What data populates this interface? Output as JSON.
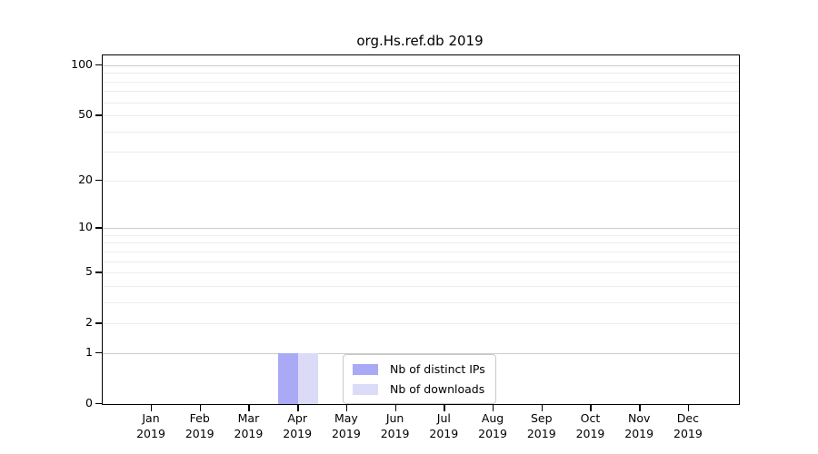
{
  "chart_data": {
    "type": "bar",
    "title": "org.Hs.ref.db 2019",
    "yscale": "log10(1+x)",
    "ylim": [
      0,
      115
    ],
    "grid": "horizontal",
    "categories": [
      "Jan",
      "Feb",
      "Mar",
      "Apr",
      "May",
      "Jun",
      "Jul",
      "Aug",
      "Sep",
      "Oct",
      "Nov",
      "Dec"
    ],
    "category_year": "2019",
    "series": [
      {
        "name": "Nb of distinct IPs",
        "color": "#a9a9f6",
        "values": [
          0,
          0,
          0,
          1,
          0,
          0,
          0,
          0,
          0,
          0,
          0,
          0
        ]
      },
      {
        "name": "Nb of downloads",
        "color": "#dbdbf8",
        "values": [
          0,
          0,
          0,
          1,
          0,
          0,
          0,
          0,
          0,
          0,
          0,
          0
        ]
      }
    ],
    "ytick_values": [
      100,
      50,
      20,
      10,
      5,
      2,
      1,
      0
    ],
    "gridline_values_major": [
      1,
      10,
      100
    ],
    "gridline_values_minor": [
      2,
      3,
      4,
      5,
      6,
      7,
      8,
      9,
      20,
      30,
      40,
      50,
      60,
      70,
      80,
      90
    ],
    "legend_position": "lower center"
  },
  "colors": {
    "grid_major": "#cccccc",
    "grid_minor": "#ececec",
    "spine": "#000000",
    "legend_border": "#c9c9c9",
    "background": "#ffffff"
  }
}
